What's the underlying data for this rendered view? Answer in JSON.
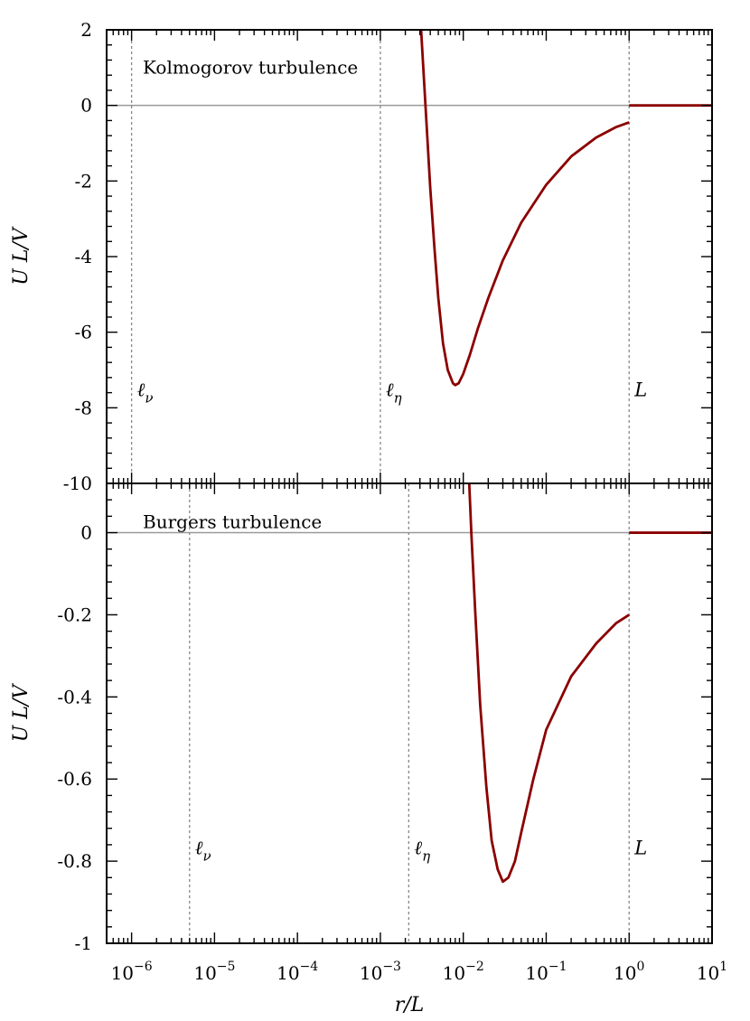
{
  "chart_data": [
    {
      "type": "line",
      "title": "Kolmogorov turbulence",
      "xlabel": "r/L",
      "ylabel": "U L/V",
      "xscale": "log",
      "xlim": [
        5e-07,
        10
      ],
      "ylim": [
        -10,
        2
      ],
      "yticks": [
        {
          "v": 2,
          "label": "2"
        },
        {
          "v": 0,
          "label": "0"
        },
        {
          "v": -2,
          "label": "-2"
        },
        {
          "v": -4,
          "label": "-4"
        },
        {
          "v": -6,
          "label": "-6"
        },
        {
          "v": -8,
          "label": "-8"
        },
        {
          "v": -10,
          "label": "-10"
        }
      ],
      "markers": [
        {
          "x": 1e-06,
          "label": "ℓ",
          "sub": "ν"
        },
        {
          "x": 0.001,
          "label": "ℓ",
          "sub": "η"
        },
        {
          "x": 1,
          "label": "L",
          "sub": ""
        }
      ],
      "zero_line": true,
      "series": [
        {
          "color": "#8b0000",
          "points": [
            [
              0.0031,
              2.0
            ],
            [
              0.0035,
              0.0
            ],
            [
              0.004,
              -2.2
            ],
            [
              0.0045,
              -3.8
            ],
            [
              0.005,
              -5.1
            ],
            [
              0.0057,
              -6.3
            ],
            [
              0.0065,
              -7.0
            ],
            [
              0.0075,
              -7.35
            ],
            [
              0.008,
              -7.4
            ],
            [
              0.0088,
              -7.35
            ],
            [
              0.01,
              -7.1
            ],
            [
              0.012,
              -6.6
            ],
            [
              0.015,
              -5.9
            ],
            [
              0.02,
              -5.1
            ],
            [
              0.03,
              -4.1
            ],
            [
              0.05,
              -3.1
            ],
            [
              0.1,
              -2.1
            ],
            [
              0.2,
              -1.35
            ],
            [
              0.4,
              -0.85
            ],
            [
              0.7,
              -0.57
            ],
            [
              1.0,
              -0.45
            ]
          ]
        },
        {
          "color": "#8b0000",
          "points": [
            [
              1.0,
              0.0
            ],
            [
              10,
              0.0
            ]
          ]
        }
      ]
    },
    {
      "type": "line",
      "title": "Burgers turbulence",
      "xlabel": "r/L",
      "ylabel": "U L/V",
      "xscale": "log",
      "xlim": [
        5e-07,
        10
      ],
      "ylim": [
        -1,
        0.12
      ],
      "yticks": [
        {
          "v": 0,
          "label": "0"
        },
        {
          "v": -0.2,
          "label": "-0.2"
        },
        {
          "v": -0.4,
          "label": "-0.4"
        },
        {
          "v": -0.6,
          "label": "-0.6"
        },
        {
          "v": -0.8,
          "label": "-0.8"
        },
        {
          "v": -1,
          "label": "-1"
        }
      ],
      "xticks": [
        {
          "v": 1e-06,
          "base": "10",
          "exp": "−6"
        },
        {
          "v": 1e-05,
          "base": "10",
          "exp": "−5"
        },
        {
          "v": 0.0001,
          "base": "10",
          "exp": "−4"
        },
        {
          "v": 0.001,
          "base": "10",
          "exp": "−3"
        },
        {
          "v": 0.01,
          "base": "10",
          "exp": "−2"
        },
        {
          "v": 0.1,
          "base": "10",
          "exp": "−1"
        },
        {
          "v": 1,
          "base": "10",
          "exp": "0"
        },
        {
          "v": 10,
          "base": "10",
          "exp": "1"
        }
      ],
      "markers": [
        {
          "x": 5e-06,
          "label": "ℓ",
          "sub": "ν"
        },
        {
          "x": 0.0022,
          "label": "ℓ",
          "sub": "η"
        },
        {
          "x": 1,
          "label": "L",
          "sub": ""
        }
      ],
      "zero_line": true,
      "series": [
        {
          "color": "#8b0000",
          "points": [
            [
              0.0118,
              0.12
            ],
            [
              0.0125,
              0.0
            ],
            [
              0.014,
              -0.2
            ],
            [
              0.016,
              -0.42
            ],
            [
              0.019,
              -0.62
            ],
            [
              0.022,
              -0.75
            ],
            [
              0.026,
              -0.82
            ],
            [
              0.03,
              -0.85
            ],
            [
              0.035,
              -0.84
            ],
            [
              0.042,
              -0.8
            ],
            [
              0.05,
              -0.73
            ],
            [
              0.07,
              -0.6
            ],
            [
              0.1,
              -0.48
            ],
            [
              0.2,
              -0.35
            ],
            [
              0.4,
              -0.27
            ],
            [
              0.7,
              -0.22
            ],
            [
              1.0,
              -0.2
            ]
          ]
        },
        {
          "color": "#8b0000",
          "points": [
            [
              1.0,
              0.0
            ],
            [
              10,
              0.0
            ]
          ]
        }
      ]
    }
  ]
}
